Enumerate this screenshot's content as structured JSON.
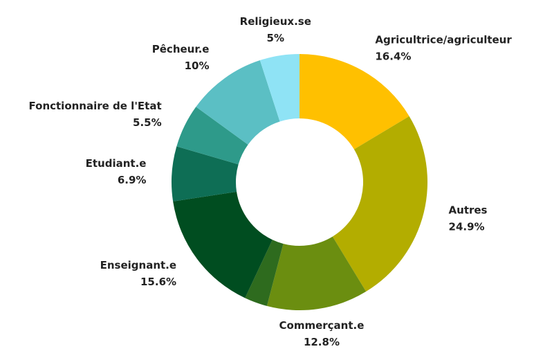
{
  "chart_data": {
    "type": "donut",
    "categories": [
      "Agricultrice/agriculteur",
      "Autres",
      "Commerçant.e",
      null,
      "Enseignant.e",
      "Etudiant.e",
      "Fonctionnaire de l'Etat",
      "Pêcheur.e",
      "Religieux.se"
    ],
    "values": [
      16.4,
      24.9,
      12.8,
      2.9,
      15.6,
      6.9,
      5.5,
      10,
      5
    ],
    "value_labels": [
      "16.4%",
      "24.9%",
      "12.8%",
      null,
      "15.6%",
      "6.9%",
      "5.5%",
      "10%",
      "5%"
    ],
    "colors": [
      "#ffc000",
      "#b3ad00",
      "#6b8e10",
      "#2e6b1e",
      "#004d20",
      "#0e6e55",
      "#2e9a8a",
      "#5bbfc4",
      "#8fe3f5"
    ]
  }
}
